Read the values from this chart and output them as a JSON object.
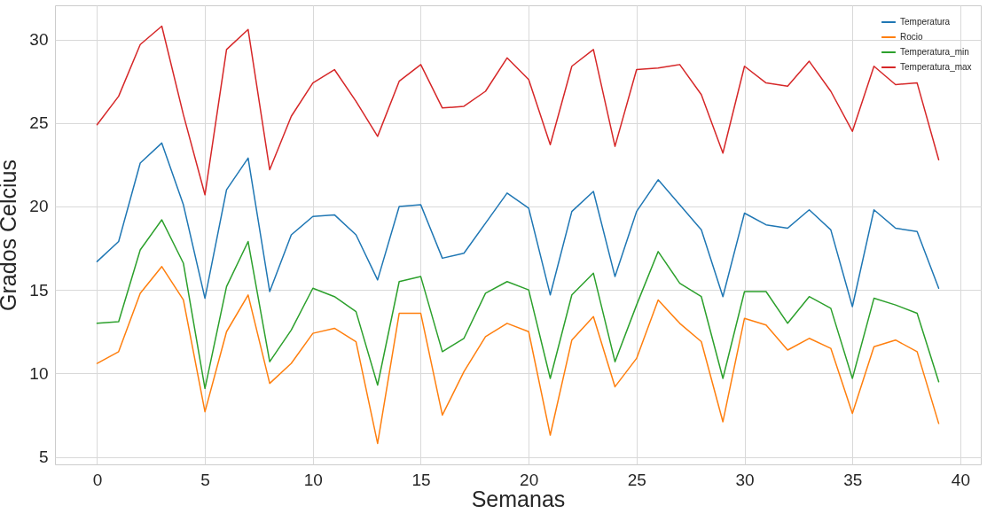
{
  "chart_data": {
    "type": "line",
    "xlabel": "Semanas",
    "ylabel": "Grados Celcius",
    "x": [
      0,
      1,
      2,
      3,
      4,
      5,
      6,
      7,
      8,
      9,
      10,
      11,
      12,
      13,
      14,
      15,
      16,
      17,
      18,
      19,
      20,
      21,
      22,
      23,
      24,
      25,
      26,
      27,
      28,
      29,
      30,
      31,
      32,
      33,
      34,
      35,
      36,
      37,
      38,
      39
    ],
    "series": [
      {
        "name": "Temperatura",
        "color": "#1f77b4",
        "values": [
          16.7,
          17.9,
          22.6,
          23.8,
          20.1,
          14.5,
          21.0,
          22.9,
          14.9,
          18.3,
          19.4,
          19.5,
          18.3,
          15.6,
          20.0,
          20.1,
          16.9,
          17.2,
          19.0,
          20.8,
          19.9,
          14.7,
          19.7,
          20.9,
          15.8,
          19.7,
          21.6,
          20.1,
          18.6,
          14.6,
          19.6,
          18.9,
          18.7,
          19.8,
          18.6,
          14.0,
          19.8,
          18.7,
          18.5,
          15.1
        ]
      },
      {
        "name": "Rocio",
        "color": "#ff7f0e",
        "values": [
          10.6,
          11.3,
          14.8,
          16.4,
          14.4,
          7.7,
          12.5,
          14.7,
          9.4,
          10.6,
          12.4,
          12.7,
          11.9,
          5.8,
          13.6,
          13.6,
          7.5,
          10.1,
          12.2,
          13.0,
          12.5,
          6.3,
          12.0,
          13.4,
          9.2,
          10.9,
          14.4,
          13.0,
          11.9,
          7.1,
          13.3,
          12.9,
          11.4,
          12.1,
          11.5,
          7.6,
          11.6,
          12.0,
          11.3,
          7.0
        ]
      },
      {
        "name": "Temperatura_min",
        "color": "#2ca02c",
        "values": [
          13.0,
          13.1,
          17.4,
          19.2,
          16.6,
          9.1,
          15.2,
          17.9,
          10.7,
          12.6,
          15.1,
          14.6,
          13.7,
          9.3,
          15.5,
          15.8,
          11.3,
          12.1,
          14.8,
          15.5,
          15.0,
          9.7,
          14.7,
          16.0,
          10.7,
          14.1,
          17.3,
          15.4,
          14.6,
          9.7,
          14.9,
          14.9,
          13.0,
          14.6,
          13.9,
          9.7,
          14.5,
          14.1,
          13.6,
          9.5
        ]
      },
      {
        "name": "Temperatura_max",
        "color": "#d62728",
        "values": [
          24.9,
          26.6,
          29.7,
          30.8,
          25.5,
          20.7,
          29.4,
          30.6,
          22.2,
          25.4,
          27.4,
          28.2,
          26.3,
          24.2,
          27.5,
          28.5,
          25.9,
          26.0,
          26.9,
          28.9,
          27.6,
          23.7,
          28.4,
          29.4,
          23.6,
          28.2,
          28.3,
          28.5,
          26.7,
          23.2,
          28.4,
          27.4,
          27.2,
          28.7,
          26.9,
          24.5,
          28.4,
          27.3,
          27.4,
          22.8
        ]
      }
    ],
    "xlim": [
      -1.95,
      40.95
    ],
    "ylim": [
      4.55,
      32.05
    ],
    "xticks": [
      0,
      5,
      10,
      15,
      20,
      25,
      30,
      35,
      40
    ],
    "yticks": [
      5,
      10,
      15,
      20,
      25,
      30
    ],
    "grid": true,
    "legend": "top right"
  }
}
